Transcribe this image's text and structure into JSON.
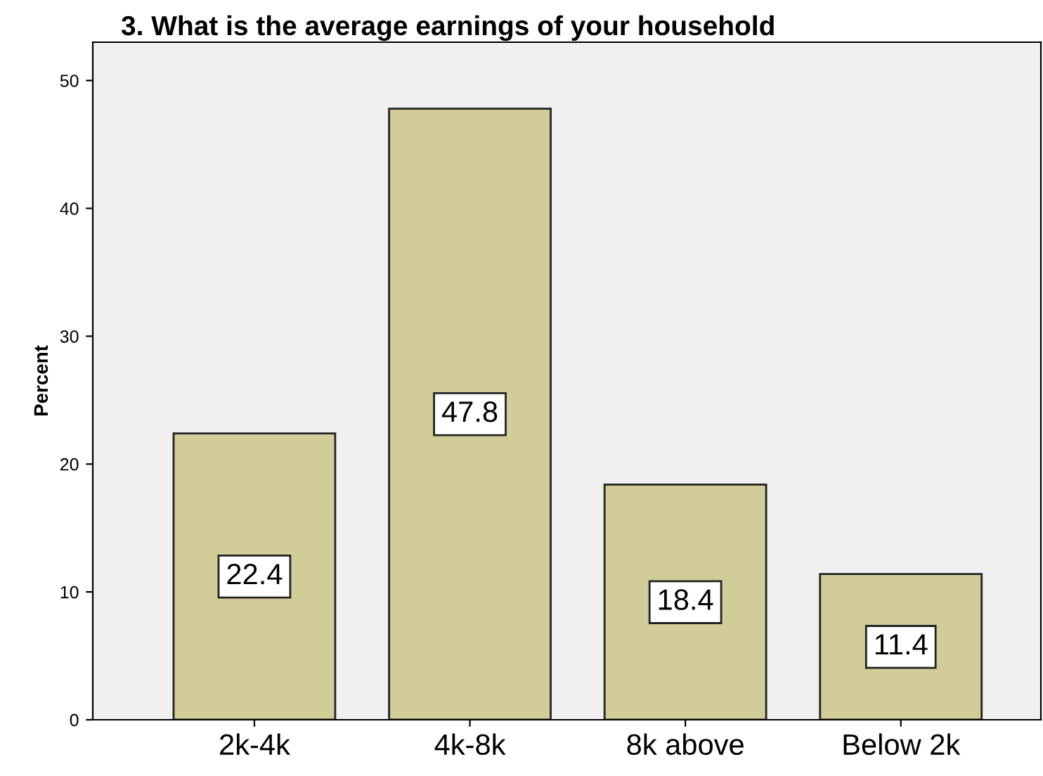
{
  "chart_data": {
    "type": "bar",
    "title": "3. What is the average earnings of your household",
    "ylabel": "Percent",
    "categories": [
      "2k-4k",
      "4k-8k",
      "8k above",
      "Below 2k"
    ],
    "values": [
      22.4,
      47.8,
      18.4,
      11.4
    ],
    "color": "#d2cc98",
    "ylim": [
      0,
      53
    ],
    "yticks": [
      0,
      10,
      20,
      30,
      40,
      50
    ],
    "grid": false,
    "data_labels": true
  }
}
